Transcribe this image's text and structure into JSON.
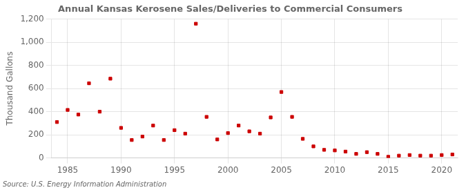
{
  "chart_data": {
    "type": "scatter",
    "title": "Annual Kansas Kerosene Sales/Deliveries to Commercial Consumers",
    "ylabel": "Thousand Gallons",
    "source": "Source: U.S. Energy Information Administration",
    "x": [
      1984,
      1985,
      1986,
      1987,
      1988,
      1989,
      1990,
      1991,
      1992,
      1993,
      1994,
      1995,
      1996,
      1997,
      1998,
      1999,
      2000,
      2001,
      2002,
      2003,
      2004,
      2005,
      2006,
      2007,
      2008,
      2009,
      2010,
      2011,
      2012,
      2013,
      2014,
      2015,
      2016,
      2017,
      2018,
      2019,
      2020,
      2021
    ],
    "values": [
      310,
      415,
      375,
      645,
      400,
      685,
      260,
      155,
      185,
      280,
      155,
      240,
      210,
      1160,
      355,
      160,
      215,
      280,
      230,
      210,
      350,
      570,
      355,
      165,
      100,
      70,
      65,
      55,
      35,
      50,
      35,
      10,
      20,
      25,
      20,
      20,
      25,
      30
    ],
    "color": "#cc0000",
    "marker": "square",
    "xlim": [
      1983.5,
      2021.5
    ],
    "xticks": [
      1985,
      1990,
      1995,
      2000,
      2005,
      2010,
      2015,
      2020
    ],
    "ylim": [
      0,
      1200
    ],
    "yticks": [
      0,
      200,
      400,
      600,
      800,
      {
        "value": 1000,
        "label": "1,000"
      },
      {
        "value": 1200,
        "label": "1,200"
      }
    ],
    "grid": true
  }
}
